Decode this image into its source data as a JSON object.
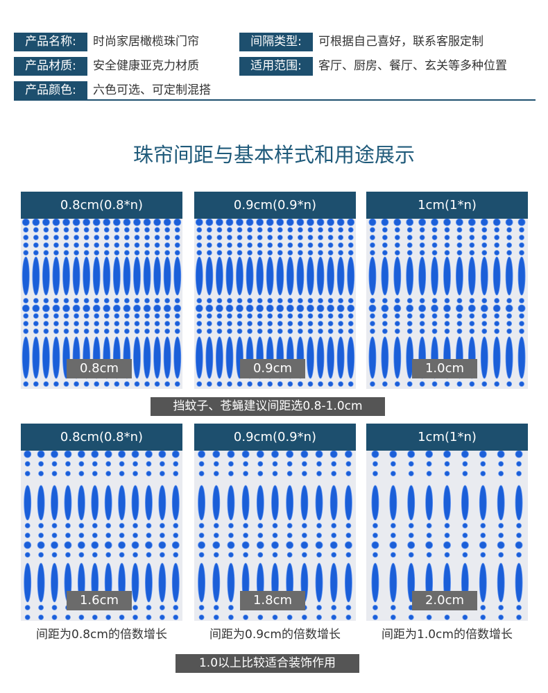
{
  "specs": [
    {
      "label": "产品名称:",
      "value": "时尚家居橄榄珠门帘"
    },
    {
      "label": "间隔类型:",
      "value": "可根据自己喜好，联系客服定制"
    },
    {
      "label": "产品材质:",
      "value": "安全健康亚克力材质"
    },
    {
      "label": "适用范围:",
      "value": "客厅、厨房、餐厅、玄关等多种位置"
    },
    {
      "label": "产品颜色:",
      "value": "六色可选、可定制混搭"
    }
  ],
  "title": "珠帘间距与基本样式和用途展示",
  "panels": [
    {
      "header": "0.8cm(0.8*n)",
      "tag": "0.8cm"
    },
    {
      "header": "0.9cm(0.9*n)",
      "tag": "0.9cm"
    },
    {
      "header": "1cm(1*n)",
      "tag": "1.0cm"
    },
    {
      "header": "0.8cm(0.8*n)",
      "tag": "1.6cm",
      "caption": "间距为0.8cm的倍数增长"
    },
    {
      "header": "0.9cm(0.9*n)",
      "tag": "1.8cm",
      "caption": "间距为0.9cm的倍数增长"
    },
    {
      "header": "1cm(1*n)",
      "tag": "2.0cm",
      "caption": "间距为1.0cm的倍数增长"
    }
  ],
  "note_row1": "挡蚊子、苍蝇建议间距选0.8-1.0cm",
  "note_row2": "1.0以上比较适合装饰作用"
}
